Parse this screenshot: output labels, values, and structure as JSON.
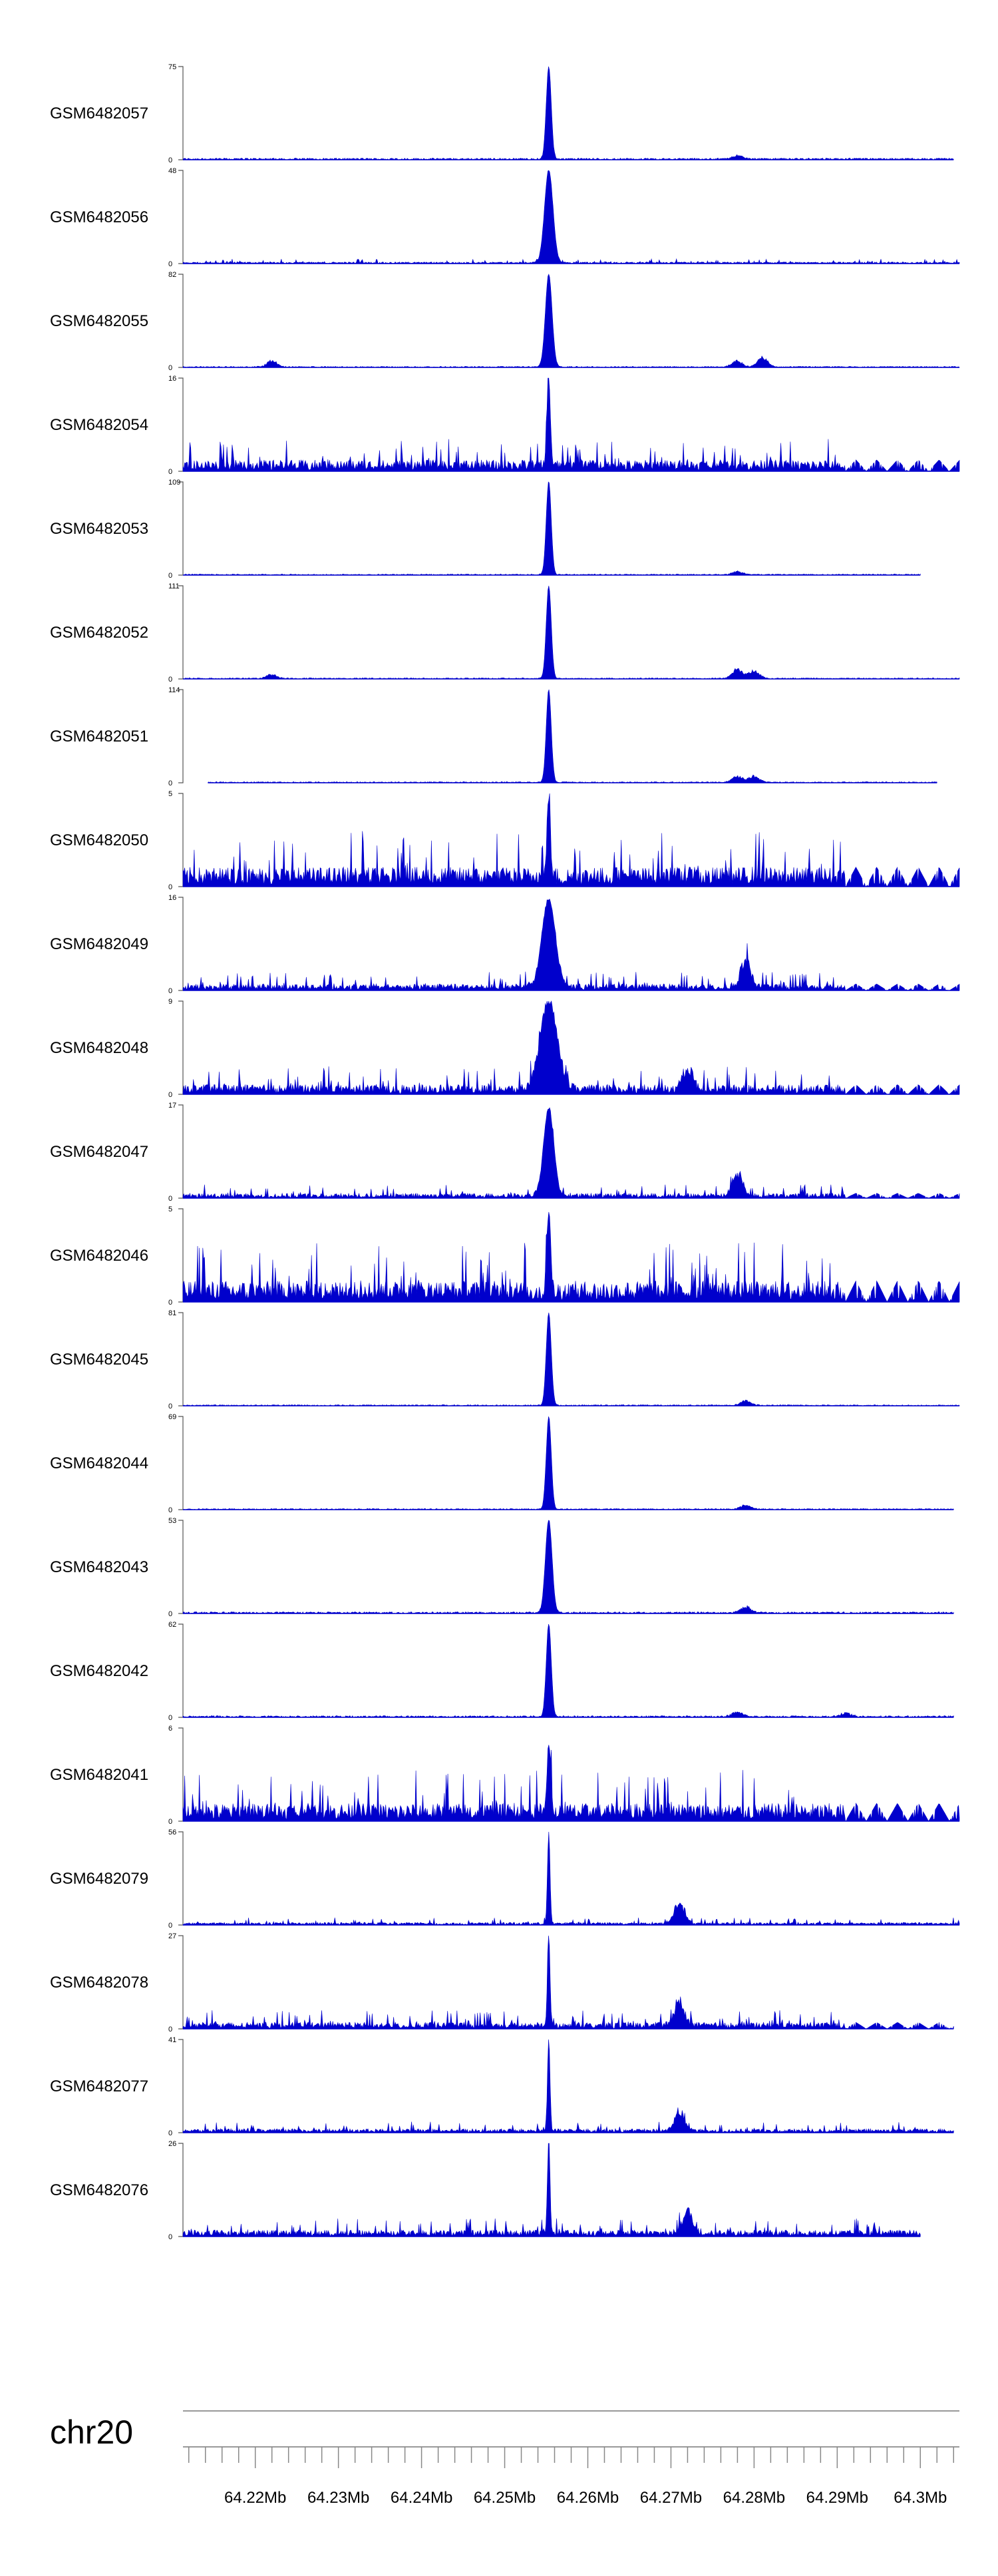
{
  "chart_data": {
    "type": "area",
    "chromosome": "chr20",
    "color": "#0000cc",
    "x_range": [
      64.2113,
      64.3047
    ],
    "x_unit": "Mb",
    "x_ticks": [
      {
        "value": 64.22,
        "label": "64.22Mb"
      },
      {
        "value": 64.23,
        "label": "64.23Mb"
      },
      {
        "value": 64.24,
        "label": "64.24Mb"
      },
      {
        "value": 64.25,
        "label": "64.25Mb"
      },
      {
        "value": 64.26,
        "label": "64.26Mb"
      },
      {
        "value": 64.27,
        "label": "64.27Mb"
      },
      {
        "value": 64.28,
        "label": "64.28Mb"
      },
      {
        "value": 64.29,
        "label": "64.29Mb"
      },
      {
        "value": 64.3,
        "label": "64.3Mb"
      }
    ],
    "minor_tick_step": 0.002,
    "tracks": [
      {
        "name": "GSM6482057",
        "ymax": 75,
        "ymin_label": "0",
        "ymax_label": "75",
        "noise": 0.03,
        "peak": 1.0,
        "peak_width": 0.0003,
        "extras": [
          [
            64.278,
            0.05
          ]
        ],
        "start": 64.2113,
        "end": 64.304
      },
      {
        "name": "GSM6482056",
        "ymax": 48,
        "ymin_label": "0",
        "ymax_label": "48",
        "noise": 0.05,
        "peak": 1.0,
        "peak_width": 0.0005,
        "extras": [],
        "start": 64.2113,
        "end": 64.3047
      },
      {
        "name": "GSM6482055",
        "ymax": 82,
        "ymin_label": "0",
        "ymax_label": "82",
        "noise": 0.02,
        "peak": 1.0,
        "peak_width": 0.0004,
        "extras": [
          [
            64.222,
            0.08
          ],
          [
            64.278,
            0.08
          ],
          [
            64.281,
            0.12
          ]
        ],
        "start": 64.2113,
        "end": 64.3047
      },
      {
        "name": "GSM6482054",
        "ymax": 16,
        "ymin_label": "0",
        "ymax_label": "16",
        "noise": 0.35,
        "peak": 0.95,
        "peak_width": 0.0002,
        "extras": [],
        "start": 64.2113,
        "end": 64.3047,
        "tail": true
      },
      {
        "name": "GSM6482053",
        "ymax": 109,
        "ymin_label": "0",
        "ymax_label": "109",
        "noise": 0.02,
        "peak": 1.0,
        "peak_width": 0.0003,
        "extras": [
          [
            64.278,
            0.04
          ]
        ],
        "start": 64.2113,
        "end": 64.3
      },
      {
        "name": "GSM6482052",
        "ymax": 111,
        "ymin_label": "0",
        "ymax_label": "111",
        "noise": 0.02,
        "peak": 1.0,
        "peak_width": 0.0003,
        "extras": [
          [
            64.222,
            0.05
          ],
          [
            64.278,
            0.12
          ],
          [
            64.28,
            0.1
          ]
        ],
        "start": 64.2113,
        "end": 64.3047
      },
      {
        "name": "GSM6482051",
        "ymax": 114,
        "ymin_label": "0",
        "ymax_label": "114",
        "noise": 0.02,
        "peak": 1.0,
        "peak_width": 0.0003,
        "extras": [
          [
            64.278,
            0.08
          ],
          [
            64.28,
            0.08
          ]
        ],
        "start": 64.2143,
        "end": 64.302
      },
      {
        "name": "GSM6482050",
        "ymax": 5,
        "ymin_label": "0",
        "ymax_label": "5",
        "noise": 0.6,
        "peak": 0.9,
        "peak_width": 0.0002,
        "extras": [],
        "start": 64.2113,
        "end": 64.3047,
        "tail": true
      },
      {
        "name": "GSM6482049",
        "ymax": 16,
        "ymin_label": "0",
        "ymax_label": "16",
        "noise": 0.2,
        "peak": 0.95,
        "peak_width": 0.0008,
        "extras": [
          [
            64.279,
            0.35
          ]
        ],
        "start": 64.2113,
        "end": 64.3047,
        "tail": true
      },
      {
        "name": "GSM6482048",
        "ymax": 9,
        "ymin_label": "0",
        "ymax_label": "9",
        "noise": 0.3,
        "peak": 0.95,
        "peak_width": 0.001,
        "extras": [
          [
            64.272,
            0.3
          ]
        ],
        "start": 64.2113,
        "end": 64.3047,
        "tail": true
      },
      {
        "name": "GSM6482047",
        "ymax": 17,
        "ymin_label": "0",
        "ymax_label": "17",
        "noise": 0.15,
        "peak": 0.95,
        "peak_width": 0.0006,
        "extras": [
          [
            64.278,
            0.3
          ]
        ],
        "start": 64.2113,
        "end": 64.3047,
        "tail": true
      },
      {
        "name": "GSM6482046",
        "ymax": 5,
        "ymin_label": "0",
        "ymax_label": "5",
        "noise": 0.65,
        "peak": 0.9,
        "peak_width": 0.0002,
        "extras": [],
        "start": 64.2113,
        "end": 64.3047,
        "tail": true
      },
      {
        "name": "GSM6482045",
        "ymax": 81,
        "ymin_label": "0",
        "ymax_label": "81",
        "noise": 0.02,
        "peak": 1.0,
        "peak_width": 0.0003,
        "extras": [
          [
            64.279,
            0.06
          ]
        ],
        "start": 64.2113,
        "end": 64.3047
      },
      {
        "name": "GSM6482044",
        "ymax": 69,
        "ymin_label": "0",
        "ymax_label": "69",
        "noise": 0.02,
        "peak": 1.0,
        "peak_width": 0.0003,
        "extras": [
          [
            64.279,
            0.05
          ]
        ],
        "start": 64.2113,
        "end": 64.304
      },
      {
        "name": "GSM6482043",
        "ymax": 53,
        "ymin_label": "0",
        "ymax_label": "53",
        "noise": 0.03,
        "peak": 1.0,
        "peak_width": 0.0004,
        "extras": [
          [
            64.279,
            0.08
          ]
        ],
        "start": 64.2113,
        "end": 64.304
      },
      {
        "name": "GSM6482042",
        "ymax": 62,
        "ymin_label": "0",
        "ymax_label": "62",
        "noise": 0.03,
        "peak": 1.0,
        "peak_width": 0.0003,
        "extras": [
          [
            64.278,
            0.06
          ],
          [
            64.291,
            0.05
          ]
        ],
        "start": 64.2113,
        "end": 64.304
      },
      {
        "name": "GSM6482041",
        "ymax": 6,
        "ymin_label": "0",
        "ymax_label": "6",
        "noise": 0.55,
        "peak": 0.8,
        "peak_width": 0.0002,
        "extras": [],
        "start": 64.2113,
        "end": 64.3047,
        "tail": true
      },
      {
        "name": "GSM6482079",
        "ymax": 56,
        "ymin_label": "0",
        "ymax_label": "56",
        "noise": 0.08,
        "peak": 1.0,
        "peak_width": 0.00015,
        "extras": [
          [
            64.271,
            0.3
          ]
        ],
        "start": 64.2113,
        "end": 64.3047
      },
      {
        "name": "GSM6482078",
        "ymax": 27,
        "ymin_label": "0",
        "ymax_label": "27",
        "noise": 0.2,
        "peak": 1.0,
        "peak_width": 0.00015,
        "extras": [
          [
            64.271,
            0.3
          ]
        ],
        "start": 64.2113,
        "end": 64.304,
        "tail": true
      },
      {
        "name": "GSM6482077",
        "ymax": 41,
        "ymin_label": "0",
        "ymax_label": "41",
        "noise": 0.12,
        "peak": 1.0,
        "peak_width": 0.00015,
        "extras": [
          [
            64.271,
            0.25
          ]
        ],
        "start": 64.2113,
        "end": 64.304
      },
      {
        "name": "GSM6482076",
        "ymax": 26,
        "ymin_label": "0",
        "ymax_label": "26",
        "noise": 0.2,
        "peak": 1.0,
        "peak_width": 0.00015,
        "extras": [
          [
            64.272,
            0.3
          ]
        ],
        "start": 64.2113,
        "end": 64.3
      }
    ],
    "peak_position": 64.2553
  }
}
